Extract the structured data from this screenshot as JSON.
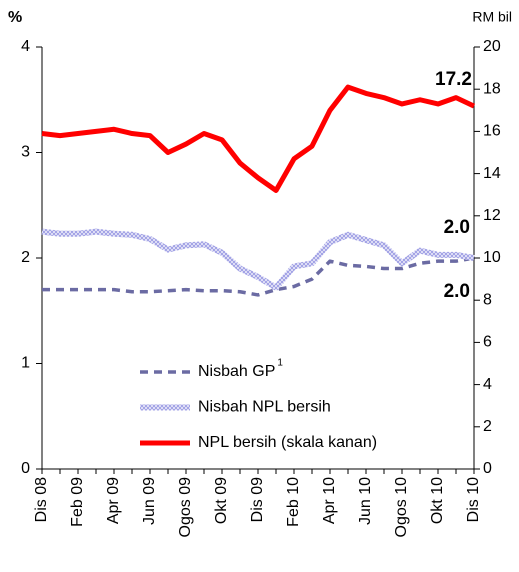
{
  "chart_data": {
    "type": "line",
    "ylabel": "%",
    "y2label": "RM bil",
    "categories": [
      "Dis 08",
      null,
      "Feb 09",
      null,
      "Apr 09",
      null,
      "Jun 09",
      null,
      "Ogos 09",
      null,
      "Okt 09",
      null,
      "Dis 09",
      null,
      "Feb 10",
      null,
      "Apr 10",
      null,
      "Jun 10",
      null,
      "Ogos 10",
      null,
      "Okt 10",
      null,
      "Dis 10"
    ],
    "ylim": [
      0,
      4
    ],
    "yticks": [
      0,
      1,
      2,
      3,
      4
    ],
    "y2lim": [
      0,
      20
    ],
    "y2ticks": [
      0,
      2,
      4,
      6,
      8,
      10,
      12,
      14,
      16,
      18,
      20
    ],
    "grid": false,
    "legend": "lower center",
    "series": [
      {
        "name": "Nisbah GP",
        "name_superscript": "1",
        "color": "#6b6ba3",
        "style": "dashed",
        "values": [
          1.7,
          1.7,
          1.7,
          1.7,
          1.7,
          1.68,
          1.68,
          1.69,
          1.7,
          1.69,
          1.69,
          1.68,
          1.65,
          1.7,
          1.73,
          1.8,
          1.97,
          1.93,
          1.92,
          1.9,
          1.9,
          1.95,
          1.97,
          1.97,
          2.0
        ]
      },
      {
        "name": "Nisbah NPL bersih",
        "color": "#a3a3e6",
        "style": "hatched",
        "values": [
          2.25,
          2.23,
          2.23,
          2.25,
          2.23,
          2.22,
          2.18,
          2.08,
          2.12,
          2.13,
          2.05,
          1.9,
          1.82,
          1.72,
          1.92,
          1.95,
          2.15,
          2.22,
          2.17,
          2.12,
          1.95,
          2.07,
          2.03,
          2.03,
          2.0
        ]
      },
      {
        "name": "NPL bersih (skala kanan)",
        "color": "#ff0000",
        "style": "solid",
        "axis": "y2",
        "values": [
          15.9,
          15.8,
          15.9,
          16.0,
          16.1,
          15.9,
          15.8,
          15.0,
          15.4,
          15.9,
          15.6,
          14.5,
          13.8,
          13.2,
          14.7,
          15.3,
          17.0,
          18.1,
          17.8,
          17.6,
          17.3,
          17.5,
          17.3,
          17.6,
          17.2
        ]
      }
    ],
    "annotations": [
      {
        "text": "17.2",
        "series": 2
      },
      {
        "text": "2.0",
        "series": 1
      },
      {
        "text": "2.0",
        "series": 0
      }
    ]
  }
}
